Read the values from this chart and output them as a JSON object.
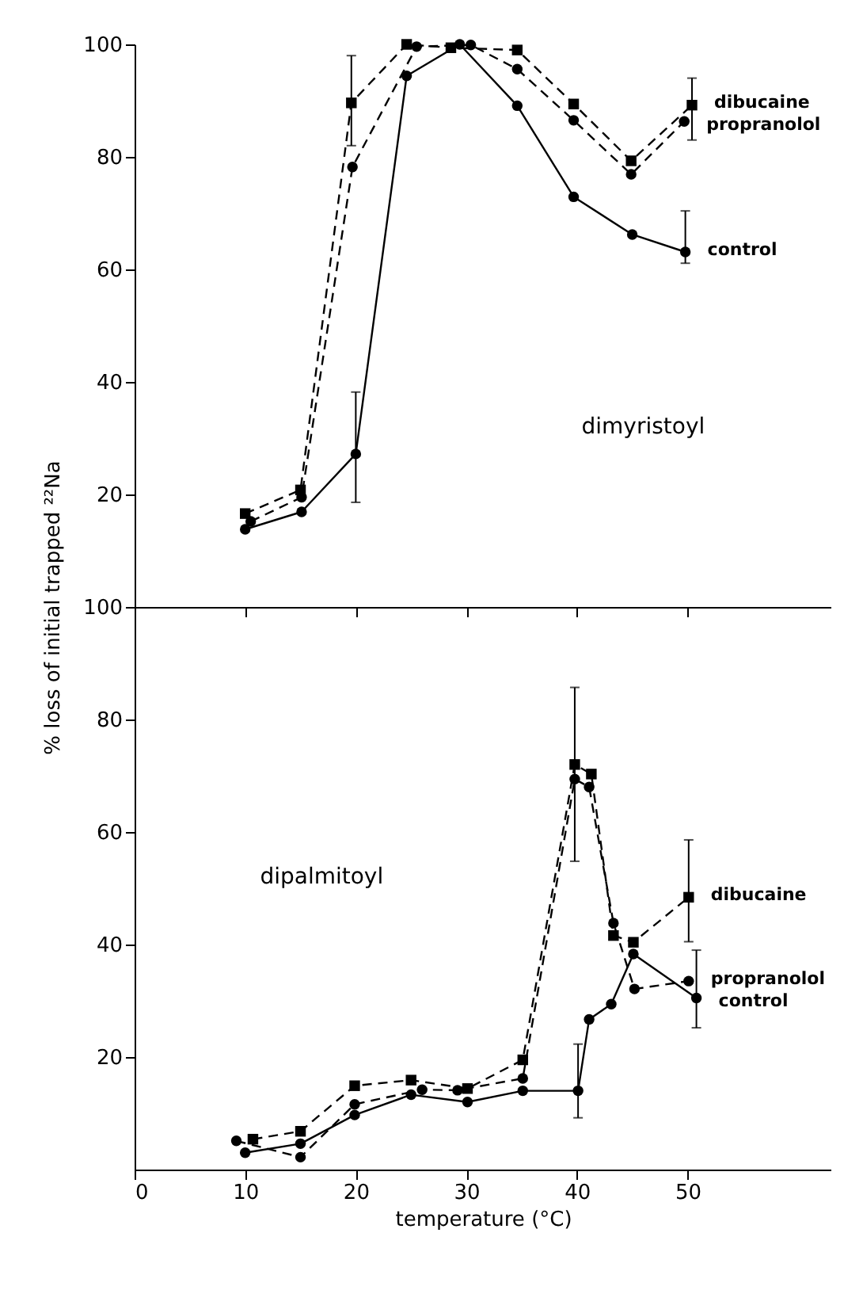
{
  "chart_data": [
    {
      "type": "line",
      "xlim": [
        0,
        63
      ],
      "xticks": [
        10,
        20,
        30,
        40,
        50
      ],
      "ylim": [
        0,
        100
      ],
      "yticks": [
        20,
        40,
        60,
        80,
        100
      ],
      "tick_labels": "y",
      "grid": false,
      "annotations": [
        "dimyristoyl"
      ],
      "series": [
        {
          "name": "dibucaine",
          "color": "#000000",
          "marker": "square",
          "line_style": "dashed",
          "x": [
            10,
            15,
            19.6,
            24.6,
            28.6,
            34.6,
            39.7,
            44.9,
            50.4
          ],
          "values": [
            16.6,
            20.8,
            89.6,
            100,
            99.4,
            99,
            89.4,
            79.3,
            89.2
          ],
          "errors": [
            null,
            null,
            [
              82,
              98
            ],
            null,
            null,
            null,
            null,
            null,
            [
              83,
              94
            ]
          ]
        },
        {
          "name": "propranolol",
          "color": "#000000",
          "marker": "circle",
          "line_style": "dashed",
          "x": [
            10.5,
            15.1,
            19.7,
            25.5,
            30.4,
            34.6,
            39.7,
            44.9,
            49.7
          ],
          "values": [
            15.2,
            19.5,
            78.2,
            99.6,
            99.9,
            95.6,
            86.5,
            76.9,
            86.3
          ]
        },
        {
          "name": "control",
          "color": "#000000",
          "marker": "circle",
          "line_style": "solid",
          "x": [
            10,
            15.1,
            20,
            24.6,
            29.4,
            34.6,
            39.7,
            45,
            49.8
          ],
          "values": [
            13.8,
            16.9,
            27.2,
            94.4,
            100,
            89.1,
            72.9,
            66.2,
            63.1
          ],
          "errors": [
            null,
            null,
            [
              18.6,
              38.2
            ],
            null,
            null,
            null,
            null,
            null,
            [
              61.1,
              70.4
            ]
          ]
        }
      ]
    },
    {
      "type": "line",
      "xlabel": "temperature (°C)",
      "ylabel": "% loss of initial trapped ²²Na",
      "xlim": [
        0,
        63
      ],
      "xticks": [
        0,
        10,
        20,
        30,
        40,
        50
      ],
      "ylim": [
        0,
        100
      ],
      "yticks": [
        20,
        40,
        60,
        80,
        100
      ],
      "grid": false,
      "annotations": [
        "dipalmitoyl"
      ],
      "series": [
        {
          "name": "dibucaine",
          "color": "#000000",
          "marker": "square",
          "line_style": "dashed",
          "x": [
            10.7,
            15,
            19.9,
            25,
            30.1,
            35.1,
            39.8,
            41.3,
            43.3,
            45.1,
            50.1
          ],
          "values": [
            5.4,
            6.8,
            14.9,
            15.9,
            14.4,
            19.5,
            72,
            70.3,
            41.6,
            40.4,
            48.4
          ],
          "errors": [
            null,
            null,
            null,
            null,
            null,
            null,
            [
              54.8,
              85.7
            ],
            null,
            null,
            null,
            [
              40.5,
              58.6
            ]
          ]
        },
        {
          "name": "propranolol",
          "color": "#000000",
          "marker": "circle",
          "line_style": "dashed",
          "x": [
            9.2,
            15,
            19.9,
            26,
            29.2,
            35.1,
            39.8,
            41.1,
            43.3,
            45.2,
            50.1
          ],
          "values": [
            5.1,
            2.2,
            11.6,
            14.2,
            14.1,
            16.2,
            69.4,
            68,
            43.8,
            32.1,
            33.5
          ]
        },
        {
          "name": "control",
          "color": "#000000",
          "marker": "circle",
          "line_style": "solid",
          "x": [
            10,
            15,
            19.9,
            25,
            30.1,
            35.1,
            40.1,
            41.1,
            43.1,
            45.1,
            50.8
          ],
          "values": [
            3,
            4.6,
            9.7,
            13.3,
            12,
            14,
            14,
            26.7,
            29.4,
            38.3,
            30.5
          ],
          "errors": [
            null,
            null,
            null,
            null,
            null,
            null,
            [
              9.2,
              22.3
            ],
            null,
            null,
            null,
            [
              25.2,
              39
            ]
          ]
        }
      ]
    }
  ]
}
